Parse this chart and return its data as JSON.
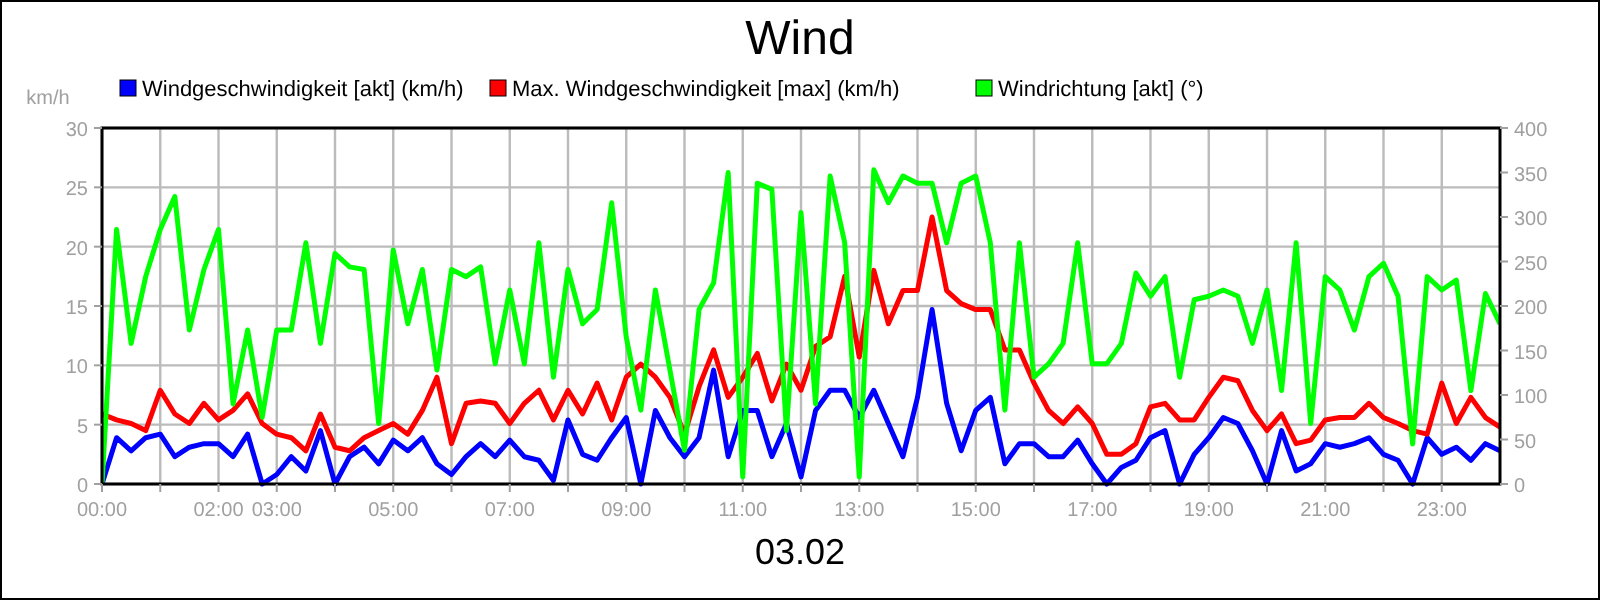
{
  "chart_data": {
    "type": "line",
    "title": "Wind",
    "xlabel": "03.02",
    "ylabel": "km/h",
    "legend": "top",
    "grid": true,
    "marker": "none",
    "line_style": "solid",
    "xlim": [
      0,
      24
    ],
    "ylim": [
      0,
      30
    ],
    "yticks": [
      0,
      5,
      10,
      15,
      20,
      25,
      30
    ],
    "y2lim": [
      0,
      400
    ],
    "y2ticks": [
      0,
      50,
      100,
      150,
      200,
      250,
      300,
      350,
      400
    ],
    "xticks": [
      {
        "value": 0,
        "label": "00:00"
      },
      {
        "value": 1,
        "label": null
      },
      {
        "value": 2,
        "label": "02:00"
      },
      {
        "value": 3,
        "label": "03:00"
      },
      {
        "value": 4,
        "label": null
      },
      {
        "value": 5,
        "label": "05:00"
      },
      {
        "value": 6,
        "label": null
      },
      {
        "value": 7,
        "label": "07:00"
      },
      {
        "value": 8,
        "label": null
      },
      {
        "value": 9,
        "label": "09:00"
      },
      {
        "value": 10,
        "label": null
      },
      {
        "value": 11,
        "label": "11:00"
      },
      {
        "value": 12,
        "label": null
      },
      {
        "value": 13,
        "label": "13:00"
      },
      {
        "value": 14,
        "label": null
      },
      {
        "value": 15,
        "label": "15:00"
      },
      {
        "value": 16,
        "label": null
      },
      {
        "value": 17,
        "label": "17:00"
      },
      {
        "value": 18,
        "label": null
      },
      {
        "value": 19,
        "label": "19:00"
      },
      {
        "value": 20,
        "label": null
      },
      {
        "value": 21,
        "label": "21:00"
      },
      {
        "value": 22,
        "label": null
      },
      {
        "value": 23,
        "label": "23:00"
      }
    ],
    "x": [
      0,
      0.25,
      0.5,
      0.75,
      1,
      1.25,
      1.5,
      1.75,
      2,
      2.25,
      2.5,
      2.75,
      3,
      3.25,
      3.5,
      3.75,
      4,
      4.25,
      4.5,
      4.75,
      5,
      5.25,
      5.5,
      5.75,
      6,
      6.25,
      6.5,
      6.75,
      7,
      7.25,
      7.5,
      7.75,
      8,
      8.25,
      8.5,
      8.75,
      9,
      9.25,
      9.5,
      9.75,
      10,
      10.25,
      10.5,
      10.75,
      11,
      11.25,
      11.5,
      11.75,
      12,
      12.25,
      12.5,
      12.75,
      13,
      13.25,
      13.5,
      13.75,
      14,
      14.25,
      14.5,
      14.75,
      15,
      15.25,
      15.5,
      15.75,
      16,
      16.25,
      16.5,
      16.75,
      17,
      17.25,
      17.5,
      17.75,
      18,
      18.25,
      18.5,
      18.75,
      19,
      19.25,
      19.5,
      19.75,
      20,
      20.25,
      20.5,
      20.75,
      21,
      21.25,
      21.5,
      21.75,
      22,
      22.25,
      22.5,
      22.75,
      23,
      23.25,
      23.5,
      23.75,
      24
    ],
    "series": [
      {
        "name": "Windgeschwindigkeit [akt] (km/h)",
        "color": "#0000ff",
        "values": [
          0,
          3.9,
          2.8,
          3.9,
          4.2,
          2.3,
          3.1,
          3.4,
          3.4,
          2.3,
          4.2,
          0,
          0.8,
          2.3,
          1.1,
          4.5,
          0,
          2.3,
          3.1,
          1.7,
          3.7,
          2.8,
          3.9,
          1.7,
          0.8,
          2.3,
          3.4,
          2.3,
          3.7,
          2.3,
          2.0,
          0.3,
          5.4,
          2.5,
          2.0,
          3.9,
          5.6,
          0,
          6.2,
          3.9,
          2.3,
          3.9,
          9.6,
          2.3,
          6.2,
          6.2,
          2.3,
          5.1,
          0.6,
          6.2,
          7.9,
          7.9,
          5.6,
          7.9,
          5.1,
          2.3,
          7.3,
          14.7,
          6.8,
          2.8,
          6.2,
          7.3,
          1.7,
          3.4,
          3.4,
          2.3,
          2.3,
          3.7,
          1.7,
          0,
          1.4,
          2.0,
          3.9,
          4.5,
          0,
          2.5,
          3.9,
          5.6,
          5.1,
          2.8,
          0,
          4.5,
          1.1,
          1.7,
          3.4,
          3.1,
          3.4,
          3.9,
          2.5,
          2.0,
          0,
          3.9,
          2.5,
          3.1,
          2.0,
          3.4,
          2.8
        ]
      },
      {
        "name": "Max. Windgeschwindigkeit [max] (km/h)",
        "color": "#ff0000",
        "values": [
          5.9,
          5.4,
          5.1,
          4.5,
          7.9,
          5.9,
          5.1,
          6.8,
          5.4,
          6.2,
          7.6,
          5.1,
          4.2,
          3.9,
          2.8,
          5.9,
          3.1,
          2.8,
          3.9,
          4.5,
          5.1,
          4.2,
          6.2,
          9.0,
          3.4,
          6.8,
          7.0,
          6.8,
          5.1,
          6.8,
          7.9,
          5.4,
          7.9,
          5.9,
          8.5,
          5.4,
          9.0,
          10.1,
          9.0,
          7.3,
          4.2,
          8.2,
          11.3,
          7.3,
          9.0,
          11.0,
          7.0,
          10.1,
          7.9,
          11.6,
          12.4,
          17.5,
          10.7,
          18.0,
          13.5,
          16.3,
          16.3,
          22.5,
          16.3,
          15.2,
          14.7,
          14.7,
          11.3,
          11.3,
          8.5,
          6.2,
          5.1,
          6.5,
          5.1,
          2.5,
          2.5,
          3.4,
          6.5,
          6.8,
          5.4,
          5.4,
          7.3,
          9.0,
          8.7,
          6.2,
          4.5,
          5.9,
          3.4,
          3.7,
          5.4,
          5.6,
          5.6,
          6.8,
          5.6,
          5.1,
          4.5,
          4.2,
          8.5,
          5.1,
          7.3,
          5.6,
          4.8
        ]
      },
      {
        "name": "Windrichtung [akt] (°)",
        "color": "#00ff00",
        "axis": "y2",
        "values": [
          0,
          286,
          158,
          233,
          286,
          323,
          173,
          241,
          286,
          90,
          173,
          75,
          173,
          173,
          271,
          158,
          259,
          244,
          241,
          68,
          263,
          180,
          241,
          128,
          241,
          233,
          244,
          135,
          218,
          135,
          271,
          120,
          241,
          180,
          196,
          316,
          165,
          83,
          218,
          128,
          38,
          196,
          226,
          350,
          8,
          338,
          331,
          60,
          305,
          90,
          346,
          271,
          8,
          353,
          316,
          346,
          338,
          338,
          271,
          338,
          346,
          271,
          83,
          271,
          120,
          135,
          158,
          271,
          135,
          135,
          158,
          237,
          211,
          233,
          120,
          207,
          211,
          218,
          211,
          158,
          218,
          105,
          271,
          68,
          233,
          218,
          173,
          233,
          248,
          211,
          45,
          233,
          218,
          229,
          105,
          214,
          180
        ]
      }
    ]
  }
}
